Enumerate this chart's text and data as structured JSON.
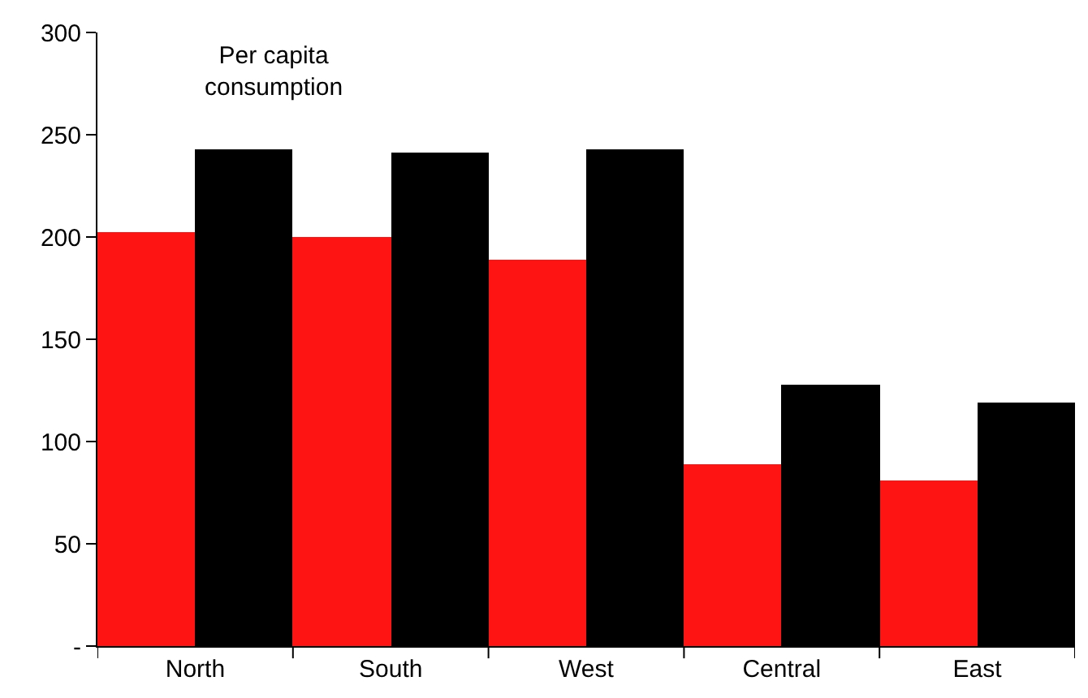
{
  "chart_data": {
    "type": "bar",
    "title": "Per capita consumption",
    "categories": [
      "North",
      "South",
      "West",
      "Central",
      "East"
    ],
    "series": [
      {
        "color": "#ff1414",
        "values": [
          202,
          200,
          189,
          89,
          81
        ]
      },
      {
        "color": "#000000",
        "values": [
          243,
          241,
          243,
          128,
          119
        ]
      }
    ],
    "ylim": [
      0,
      300
    ],
    "yticks": [
      {
        "value": 0,
        "label": "-"
      },
      50,
      100,
      150,
      200,
      250,
      300
    ]
  }
}
